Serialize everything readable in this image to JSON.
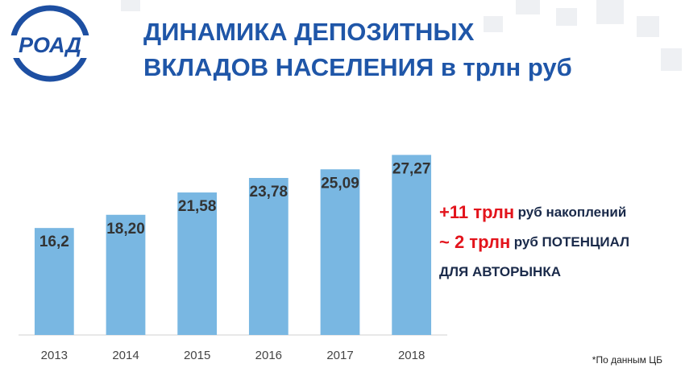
{
  "logo": "РОАД",
  "chart_data": {
    "type": "bar",
    "title_lines": [
      "ДИНАМИКА ДЕПОЗИТНЫХ",
      "ВКЛАДОВ НАСЕЛЕНИЯ в трлн руб"
    ],
    "categories": [
      "2013",
      "2014",
      "2015",
      "2016",
      "2017",
      "2018"
    ],
    "values": [
      16.2,
      18.2,
      21.58,
      23.78,
      25.09,
      27.27
    ],
    "value_labels": [
      "16,2",
      "18,20",
      "21,58",
      "23,78",
      "25,09",
      "27,27"
    ],
    "color": "#79b7e2",
    "ylim": [
      0,
      30
    ],
    "annotations": [
      {
        "lead": "+11 трлн",
        "rest": "руб накоплений"
      },
      {
        "lead": "~ 2 трлн",
        "rest": "руб ПОТЕНЦИАЛ"
      },
      {
        "rest": "ДЛЯ АВТОРЫНКА"
      }
    ],
    "lead_color": "#e3141c",
    "footnote": "*По данным ЦБ"
  }
}
